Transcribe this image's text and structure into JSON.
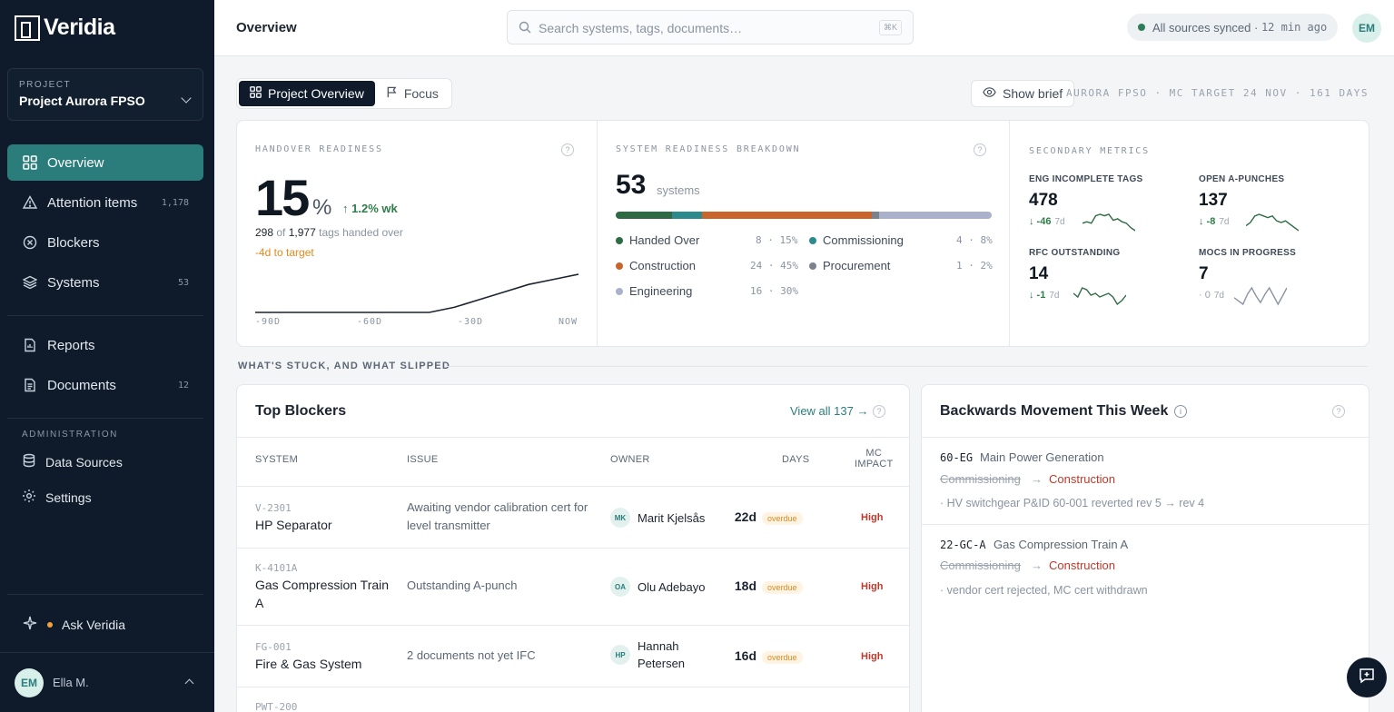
{
  "brand": {
    "name": "Veridia"
  },
  "project": {
    "label": "PROJECT",
    "name": "Project Aurora FPSO"
  },
  "nav": [
    {
      "label": "Overview",
      "count": ""
    },
    {
      "label": "Attention items",
      "count": "1,178"
    },
    {
      "label": "Blockers",
      "count": ""
    },
    {
      "label": "Systems",
      "count": "53"
    },
    {
      "label": "Reports",
      "count": ""
    },
    {
      "label": "Documents",
      "count": "12"
    }
  ],
  "admin": {
    "label": "ADMINISTRATION",
    "items": [
      "Data Sources",
      "Settings"
    ]
  },
  "ask": {
    "label": "Ask Veridia"
  },
  "user": {
    "initials": "EM",
    "name": "Ella M."
  },
  "header": {
    "title": "Overview",
    "search_placeholder": "Search systems, tags, documents…",
    "search_kbd": "⌘K",
    "sync_text": "All sources synced ·",
    "sync_ago": "12 min ago",
    "avatar": "EM"
  },
  "toolbar": {
    "tabs": [
      "Project Overview",
      "Focus"
    ],
    "brief": "Show brief",
    "target": "AURORA FPSO · MC TARGET 24 NOV · 161 DAYS"
  },
  "handover": {
    "label": "HANDOVER READINESS",
    "percent": "15",
    "percent_sign": "%",
    "weekly": "1.2% wk",
    "handed": "298",
    "of": "of",
    "total": "1,977",
    "suffix": "tags handed over",
    "to_target": "-4d to target",
    "axis": [
      "-90D",
      "-60D",
      "-30D",
      "NOW"
    ],
    "trend": [
      0,
      0,
      0,
      0,
      0,
      0,
      0,
      0,
      2,
      5,
      8,
      11,
      13,
      15
    ]
  },
  "systems": {
    "label": "SYSTEM READINESS BREAKDOWN",
    "total": "53",
    "unit": "systems",
    "segments": [
      {
        "name": "Handed Over",
        "count": "8",
        "pct": "15%",
        "share": 15,
        "color": "#2e6b45"
      },
      {
        "name": "Commissioning",
        "count": "4",
        "pct": "8%",
        "share": 8,
        "color": "#2b8a8c"
      },
      {
        "name": "Construction",
        "count": "24",
        "pct": "45%",
        "share": 45,
        "color": "#c9652a"
      },
      {
        "name": "Procurement",
        "count": "1",
        "pct": "2%",
        "share": 2,
        "color": "#7a8290"
      },
      {
        "name": "Engineering",
        "count": "16",
        "pct": "30%",
        "share": 30,
        "color": "#a9b1cc"
      }
    ]
  },
  "secondary": {
    "label": "SECONDARY METRICS",
    "metrics": [
      {
        "name": "ENG INCOMPLETE TAGS",
        "value": "478",
        "delta": "↓ -46",
        "period": "7d",
        "spark": [
          9,
          10,
          9,
          14,
          15,
          14,
          15,
          11,
          12,
          10,
          9,
          6,
          4
        ]
      },
      {
        "name": "OPEN A-PUNCHES",
        "value": "137",
        "delta": "↓ -8",
        "period": "7d",
        "spark": [
          7,
          9,
          13,
          14,
          13,
          12,
          13,
          10,
          9,
          10,
          8,
          6,
          4
        ]
      },
      {
        "name": "RFC OUTSTANDING",
        "value": "14",
        "delta": "↓ -1",
        "period": "7d",
        "spark": [
          10,
          8,
          13,
          12,
          9,
          10,
          8,
          9,
          10,
          8,
          4,
          6,
          9
        ]
      },
      {
        "name": "MOCS IN PROGRESS",
        "value": "7",
        "delta": "· 0",
        "period": "7d",
        "spark": [
          8,
          6,
          4,
          10,
          14,
          9,
          5,
          10,
          14,
          9,
          4,
          9,
          14
        ]
      }
    ]
  },
  "section": {
    "label": "WHAT'S STUCK, AND WHAT SLIPPED"
  },
  "blockers": {
    "title": "Top Blockers",
    "view_all": "View all 137 →",
    "columns": [
      "SYSTEM",
      "ISSUE",
      "OWNER",
      "DAYS",
      "MC",
      "IMPACT"
    ],
    "rows": [
      {
        "tag": "V-2301",
        "system": "HP Separator",
        "issue": "Awaiting vendor calibration cert for level transmitter",
        "initials": "MK",
        "owner": "Marit Kjelsås",
        "days": "22d",
        "status": "overdue",
        "impact": "High"
      },
      {
        "tag": "K-4101A",
        "system": "Gas Compression Train A",
        "issue": "Outstanding A-punch",
        "initials": "OA",
        "owner": "Olu Adebayo",
        "days": "18d",
        "status": "overdue",
        "impact": "High"
      },
      {
        "tag": "FG-001",
        "system": "Fire & Gas System",
        "issue": "2 documents not yet IFC",
        "initials": "HP",
        "owner": "Hannah Petersen",
        "days": "16d",
        "status": "overdue",
        "impact": "High"
      },
      {
        "tag": "PWT-200",
        "system": "",
        "issue": "",
        "initials": "",
        "owner": "",
        "days": "",
        "status": "",
        "impact": ""
      }
    ]
  },
  "backwards": {
    "title": "Backwards Movement This Week",
    "items": [
      {
        "tag": "60-EG",
        "name": "Main Power Generation",
        "from": "Commissioning",
        "arrow": "→",
        "to": "Construction",
        "note": "· HV switchgear P&ID 60-001 reverted rev 5 → rev 4"
      },
      {
        "tag": "22-GC-A",
        "name": "Gas Compression Train A",
        "from": "Commissioning",
        "arrow": "→",
        "to": "Construction",
        "note": "· vendor cert rejected, MC cert withdrawn"
      }
    ]
  }
}
